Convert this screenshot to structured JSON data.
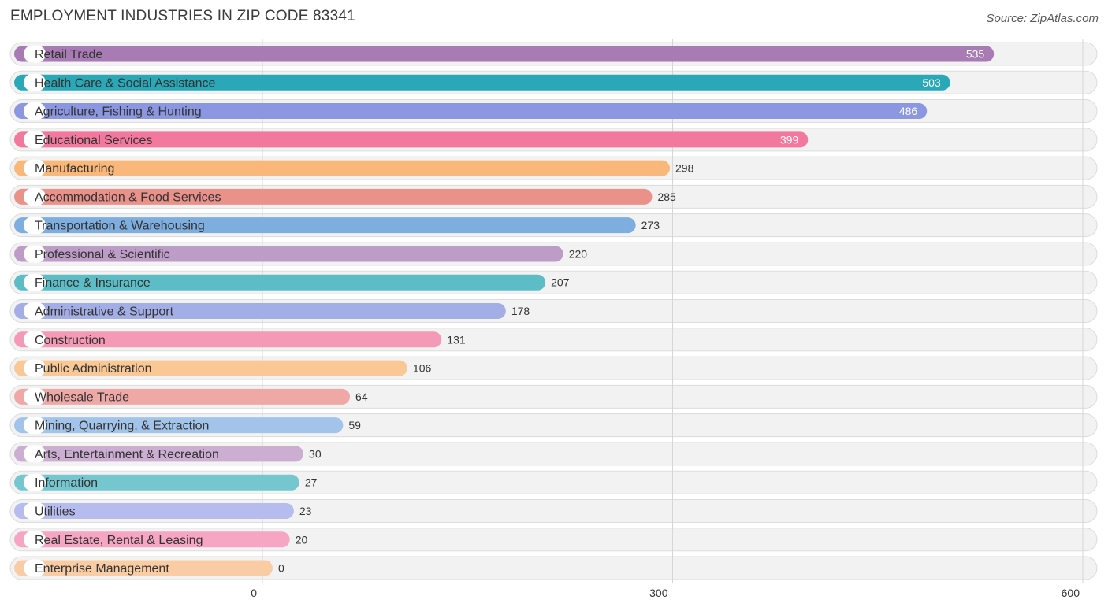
{
  "chart_data": {
    "type": "bar",
    "orientation": "horizontal",
    "title": "EMPLOYMENT INDUSTRIES IN ZIP CODE 83341",
    "source": "Source: ZipAtlas.com",
    "xlim": [
      0,
      600
    ],
    "ticks": [
      0,
      300,
      600
    ],
    "tick_labels": [
      "0",
      "300",
      "600"
    ],
    "categories": [
      "Retail Trade",
      "Health Care & Social Assistance",
      "Agriculture, Fishing & Hunting",
      "Educational Services",
      "Manufacturing",
      "Accommodation & Food Services",
      "Transportation & Warehousing",
      "Professional & Scientific",
      "Finance & Insurance",
      "Administrative & Support",
      "Construction",
      "Public Administration",
      "Wholesale Trade",
      "Mining, Quarrying, & Extraction",
      "Arts, Entertainment & Recreation",
      "Information",
      "Utilities",
      "Real Estate, Rental & Leasing",
      "Enterprise Management"
    ],
    "values": [
      535,
      503,
      486,
      399,
      298,
      285,
      273,
      220,
      207,
      178,
      131,
      106,
      64,
      59,
      30,
      27,
      23,
      20,
      0
    ],
    "colors": [
      "#a87bb4",
      "#2aa8b7",
      "#8b97e0",
      "#f2789e",
      "#f9b87a",
      "#ea918a",
      "#7eaee0",
      "#be9cc8",
      "#5cbdc6",
      "#a4aee6",
      "#f59ab6",
      "#f9c894",
      "#f0a8a6",
      "#a2c4ea",
      "#ccaed3",
      "#76c6cf",
      "#b6bcee",
      "#f6a6c2",
      "#f9cca4"
    ],
    "value_labels_inside": [
      true,
      true,
      true,
      true,
      false,
      false,
      false,
      false,
      false,
      false,
      false,
      false,
      false,
      false,
      false,
      false,
      false,
      false,
      false
    ],
    "grid": true
  }
}
